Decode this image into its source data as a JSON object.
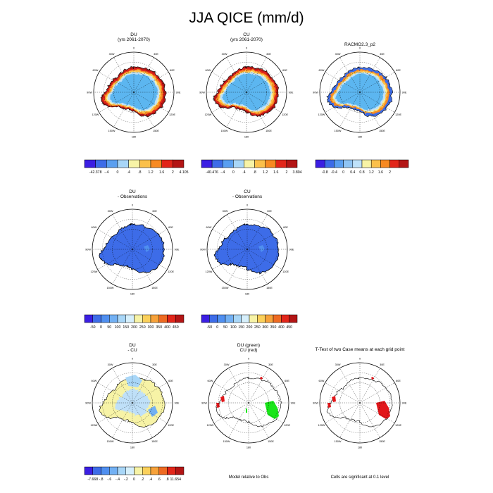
{
  "title": "JJA QICE (mm/d)",
  "panels": [
    {
      "id": "p1",
      "title_lines": [
        "DU",
        "(yrs 2061-2070)"
      ],
      "style": "full"
    },
    {
      "id": "p2",
      "title_lines": [
        "CU",
        "(yrs 2061-2070)"
      ],
      "style": "full"
    },
    {
      "id": "p3",
      "title_lines": [
        "RACMO2.3_p2"
      ],
      "style": "racmo"
    },
    {
      "id": "p4",
      "title_lines": [
        "DU",
        "- Observations"
      ],
      "style": "diffblue"
    },
    {
      "id": "p5",
      "title_lines": [
        "CU",
        "- Observations"
      ],
      "style": "diffblue"
    },
    {
      "id": "p6",
      "title_lines": [
        "DU",
        "- CU"
      ],
      "style": "ducu"
    },
    {
      "id": "p7",
      "title_lines": [
        "DU (green)",
        "CU (red)"
      ],
      "style": "greenred"
    },
    {
      "id": "p8",
      "title_lines": [
        "T-Test of two Case means at each grid point"
      ],
      "style": "ttest"
    }
  ],
  "lon_labels": [
    "0",
    "30E",
    "60E",
    "90E",
    "120E",
    "150E",
    "180",
    "150W",
    "120W",
    "90W",
    "60W",
    "30W"
  ],
  "colorbars": [
    {
      "id": "cb1",
      "labels": [
        "-42.378",
        "-.4",
        "0",
        ".4",
        ".8",
        "1.2",
        "1.6",
        "2",
        "4.105"
      ],
      "colors": [
        "#3b1ee3",
        "#3d6ce8",
        "#5a9ff0",
        "#a8d6f7",
        "#f7f3a6",
        "#fbc04a",
        "#f78a22",
        "#e2261a",
        "#b31515"
      ]
    },
    {
      "id": "cb2",
      "labels": [
        "-40.476",
        "-.4",
        "0",
        ".4",
        ".8",
        "1.2",
        "1.6",
        "2",
        "3.804"
      ],
      "colors": [
        "#3b1ee3",
        "#3d6ce8",
        "#5a9ff0",
        "#a8d6f7",
        "#f7f3a6",
        "#fbc04a",
        "#f78a22",
        "#e2261a",
        "#b31515"
      ]
    },
    {
      "id": "cb3",
      "labels": [
        "-0.8",
        "-0.4",
        "0",
        "0.4",
        "0.8",
        "1.2",
        "1.6",
        "2"
      ],
      "colors": [
        "#3b1ee3",
        "#3d6ce8",
        "#5a9ff0",
        "#8fc4f4",
        "#bfe2fa",
        "#f7f3a6",
        "#fbc04a",
        "#f78a22",
        "#e2261a",
        "#b31515"
      ]
    },
    {
      "id": "cb4",
      "labels": [
        "-50",
        "0",
        "50",
        "100",
        "150",
        "200",
        "250",
        "300",
        "350",
        "400",
        "450"
      ],
      "colors": [
        "#3b1ee3",
        "#3d6ce8",
        "#4f8ff0",
        "#72b0f3",
        "#a8d6f7",
        "#d6effb",
        "#f7f3a6",
        "#fbd05a",
        "#f7a23a",
        "#ee6a22",
        "#e2261a",
        "#b31515"
      ]
    },
    {
      "id": "cb5",
      "labels": [
        "-50",
        "0",
        "50",
        "100",
        "150",
        "200",
        "250",
        "300",
        "350",
        "400",
        "450"
      ],
      "colors": [
        "#3b1ee3",
        "#3d6ce8",
        "#4f8ff0",
        "#72b0f3",
        "#a8d6f7",
        "#d6effb",
        "#f7f3a6",
        "#fbd05a",
        "#f7a23a",
        "#ee6a22",
        "#e2261a",
        "#b31515"
      ]
    },
    {
      "id": "cb6",
      "labels": [
        "-7.668",
        "-.8",
        "-.6",
        "-.4",
        "-.2",
        "0",
        ".2",
        ".4",
        ".6",
        ".8",
        "11.654"
      ],
      "colors": [
        "#3b1ee3",
        "#3d6ce8",
        "#4f8ff0",
        "#72b0f3",
        "#a8d6f7",
        "#d6effb",
        "#f7f3a6",
        "#fbd05a",
        "#f7a23a",
        "#ee6a22",
        "#e2261a",
        "#b31515"
      ]
    }
  ],
  "notes": {
    "model_relative": "Model relative to Obs",
    "cells_significant": "Cells are significant at 0.1 level"
  },
  "colors": {
    "ice_interior": "#5cb6f0",
    "ice_ring": "#bfe0f8",
    "diff_blue": "#3d6ce8",
    "ducu_yellow": "#f7f3a6",
    "green": "#19e619",
    "red": "#e2161a"
  }
}
